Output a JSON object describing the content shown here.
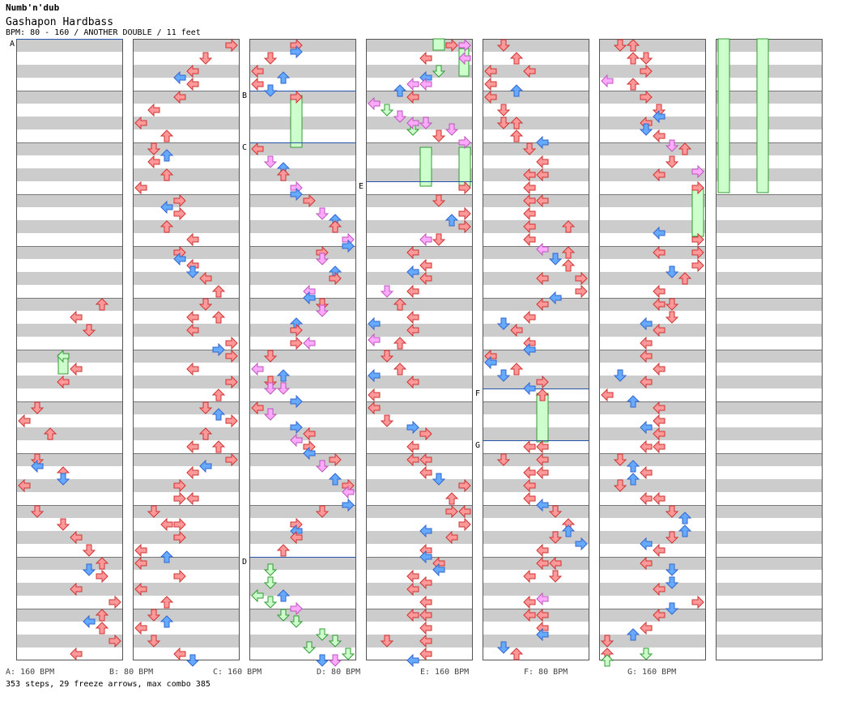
{
  "header": {
    "artist": "Numb'n'dub",
    "title": "Gashapon Hardbass",
    "info": "BPM: 80 - 160 / ANOTHER DOUBLE / 11 feet"
  },
  "markers": [
    {
      "label": "A",
      "bpm_text": "A: 160 BPM"
    },
    {
      "label": "B",
      "bpm_text": "B: 80 BPM"
    },
    {
      "label": "C",
      "bpm_text": "C: 160 BPM"
    },
    {
      "label": "D",
      "bpm_text": "D: 80 BPM"
    },
    {
      "label": "E",
      "bpm_text": "E: 160 BPM"
    },
    {
      "label": "F",
      "bpm_text": "F: 80 BPM"
    },
    {
      "label": "G",
      "bpm_text": "G: 160 BPM"
    }
  ],
  "stats": "353 steps, 29 freeze arrows, max combo 385",
  "colors": {
    "stripe_gray": "#cccccc",
    "border": "#555555",
    "bpm_line": "#2255aa",
    "arrow_quarter": "#ff9999",
    "arrow_eighth": "#66aaff",
    "arrow_sixteenth": "#ffaaff",
    "freeze": "#ccffcc"
  }
}
